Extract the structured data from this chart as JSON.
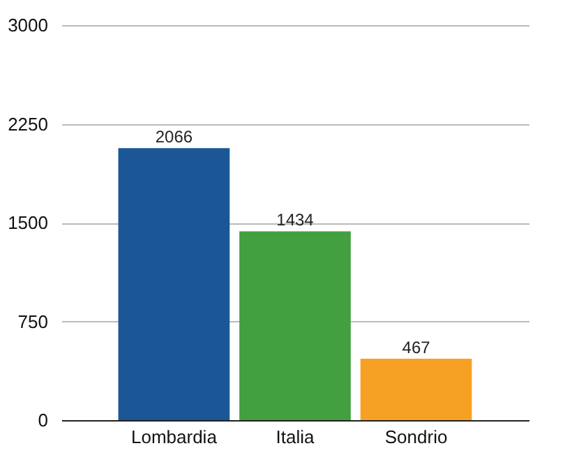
{
  "chart_data": {
    "type": "bar",
    "categories": [
      "Lombardia",
      "Italia",
      "Sondrio"
    ],
    "values": [
      2066,
      1434,
      467
    ],
    "colors": [
      "#1b5796",
      "#43a040",
      "#f7a124"
    ],
    "ylim": [
      0,
      3000
    ],
    "yticks": [
      0,
      750,
      1500,
      2250,
      3000
    ],
    "grid": "y",
    "data_labels": true
  }
}
